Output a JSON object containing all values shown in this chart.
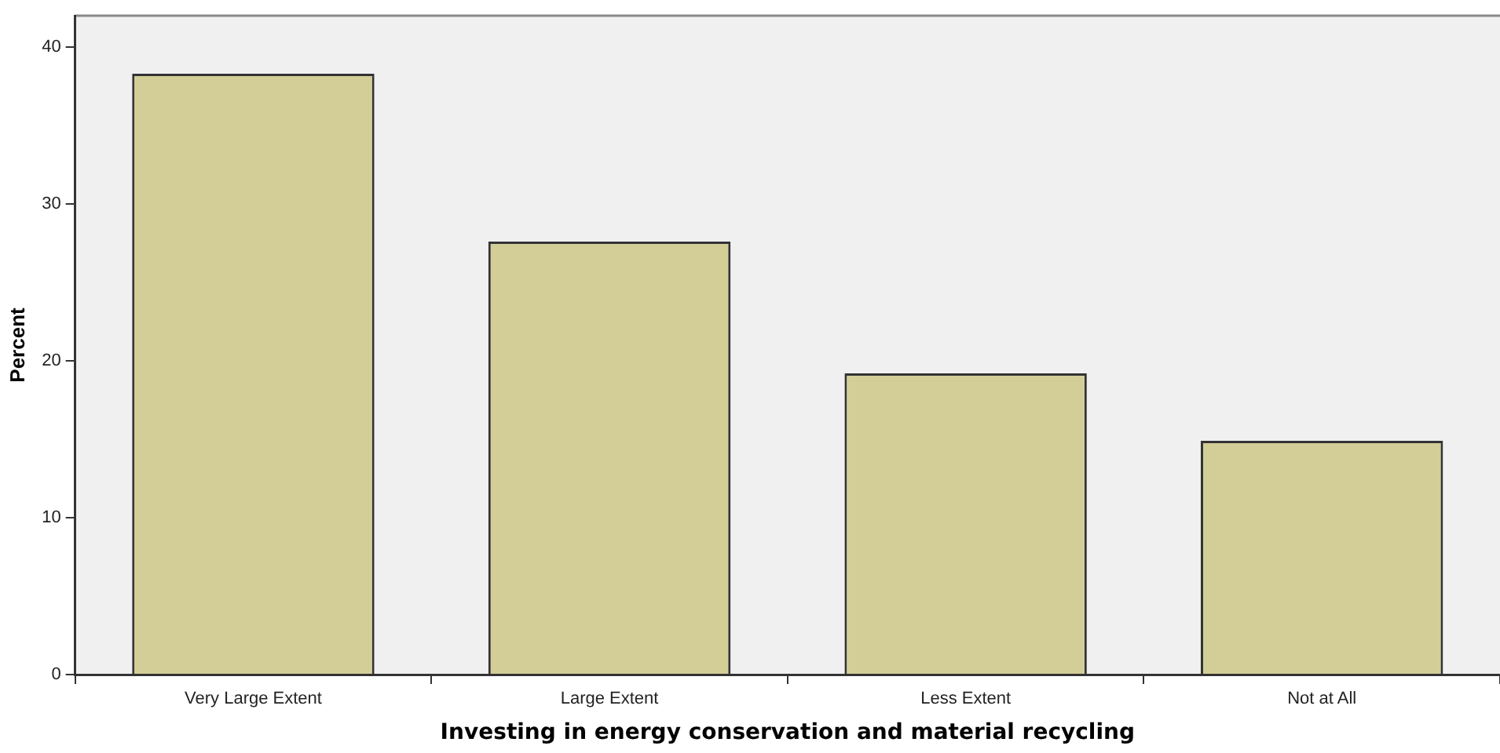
{
  "chart_data": {
    "type": "bar",
    "categories": [
      "Very Large Extent",
      "Large Extent",
      "Less Extent",
      "Not at All"
    ],
    "values": [
      38.3,
      27.6,
      19.2,
      14.9
    ],
    "color": "#d3ce97",
    "xlabel": "Investing in energy conservation and material recycling",
    "ylabel": "Percent",
    "ylim": [
      0,
      42
    ],
    "yticks": [
      0,
      10,
      20,
      30,
      40
    ],
    "grid": false
  }
}
